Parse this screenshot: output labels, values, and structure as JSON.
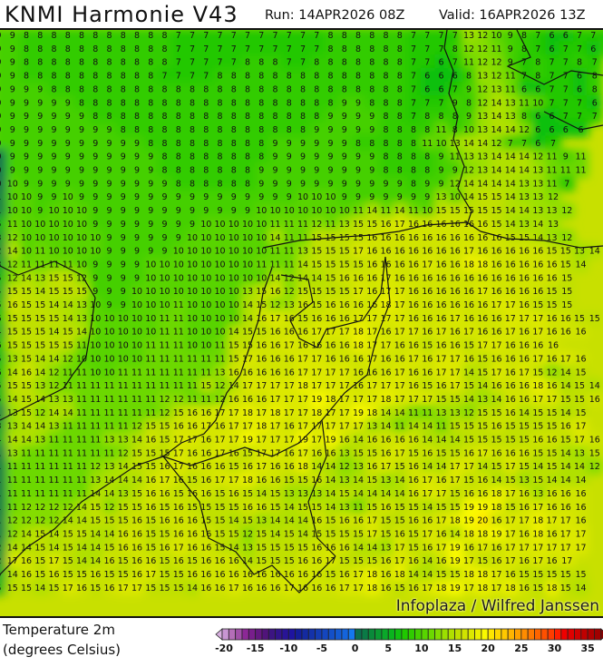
{
  "header": {
    "title": "KNMI Harmonie V43",
    "run": "Run: 14APR2026 08Z",
    "valid": "Valid: 16APR2026 13Z"
  },
  "map": {
    "variable": "Temperature 2m",
    "units": "(degrees Celsius)",
    "watermark": "Infoplaza / Wilfred Janssen",
    "grid_rows": [
      "9 9 8 8 8 8 8 8 8 8 8 8 8 7 7 7 7 7 7 7 7 7 7 7 8 8 8 8 8 8 7 7 7 7 13 12 10 9 8 7 6 6 7 7 7",
      "9 9 8 8 8 8 8 8 8 8 8 8 8 7 7 7 7 7 7 7 7 7 7 7 8 8 8 8 8 8 7 7 7 8 12 12 11 9 8 7 6 7 7 6 8",
      "9 9 8 8 8 8 8 8 8 8 8 8 8 7 7 7 7 7 8 8 8 7 7 8 8 8 8 8 8 8 7 7 6 7 11 12 12 9 7 8 7 7 8 7",
      "9 9 8 8 8 8 8 8 8 8 8 8 7 7 7 7 8 8 8 8 8 8 8 8 8 8 8 8 8 8 7 6 6 6 8 13 12 11 7 8 7 7 6 8",
      "9 9 9 9 8 8 8 8 8 8 8 8 8 8 8 8 8 8 8 8 8 8 8 8 8 8 8 8 8 8 7 6 6 7 9 12 13 11 6 6 7 7 6 8",
      "9 9 9 9 9 9 8 8 8 8 8 8 8 8 8 8 8 8 8 8 8 8 8 8 8 9 9 8 8 8 7 7 7 9 8 12 14 13 11 10 7 7 7 6",
      "9 9 9 9 9 9 9 8 8 8 8 8 8 8 8 8 8 8 8 8 8 8 8 8 9 9 9 9 8 8 7 8 8 8 9 13 14 13 8 6 6 7 7 7",
      "9 9 9 9 9 9 9 9 9 8 8 8 8 8 8 8 8 8 8 8 8 8 8 9 9 9 9 9 8 8 8 8 11 8 10 13 14 14 12 6 6 6 6",
      "9 9 9 9 9 9 9 9 9 9 9 8 8 8 8 8 8 8 8 8 9 9 9 9 9 9 8 8 8 8 8 11 10 13 14 14 12 7 7 6 7",
      "0 9 9 9 9 9 9 9 9 9 9 9 8 8 8 8 8 8 8 8 9 9 9 9 9 9 9 9 8 8 8 8 9 11 13 13 14 14 14 12 11 9 11",
      "0 9 9 9 9 9 9 9 9 9 9 9 8 8 8 8 8 8 8 9 9 9 9 9 9 9 9 9 8 8 8 8 9 9 12 13 14 14 14 13 11 11 11",
      "0 10 9 9 9 9 9 9 9 9 9 9 9 8 8 8 8 8 8 9 9 9 9 9 9 9 9 9 9 9 8 9 9 12 14 14 14 14 13 13 11 7",
      "1 10 10 9 9 10 9 9 9 9 9 9 9 9 9 9 9 9 9 9 9 9 10 10 10 9 9 9 9 9 9 9 13 10 14 15 15 14 13 13 12",
      "1 10 10 9 10 10 10 9 9 9 9 9 9 9 9 9 9 9 9 10 10 10 10 10 10 10 11 14 11 14 11 10 15 15 15 15 15 14 14 13 13 12",
      "5 11 10 10 10 10 10 9 9 9 9 9 9 9 9 10 10 10 10 10 11 11 11 12 11 13 15 15 16 17 16 16 16 16 16 16 15 14 13 14 13",
      "3 12 10 10 10 10 10 10 9 9 9 9 9 9 10 10 10 10 10 10 14 11 11 15 15 15 15 16 16 16 16 16 16 16 16 16 16 15 15 14 13 12",
      "2 14 10 11 10 10 10 10 9 9 9 9 9 10 10 10 10 10 10 10 11 11 13 15 15 15 17 16 16 16 16 16 16 16 17 16 16 16 16 16 15 15 13 14",
      "3 12 11 11 11 11 10 9 9 9 9 10 10 10 10 10 10 10 10 11 11 11 14 15 15 15 15 16 16 16 16 17 16 16 18 18 16 16 16 16 16 15 14",
      "5 12 14 13 15 15 12 9 9 9 9 10 10 10 10 10 10 10 10 10 14 12 14 14 15 16 16 16 17 16 16 16 16 16 16 16 16 16 16 16 16 15",
      "4 15 15 14 15 15 15 9 9 9 10 10 10 10 10 10 10 10 13 15 16 12 15 15 15 15 17 16 17 17 16 16 16 16 16 17 16 16 16 16 15 15",
      "5 16 15 15 14 14 13 10 9 9 10 10 10 11 10 10 10 10 14 15 12 13 16 15 16 16 16 16 18 17 16 16 16 16 16 16 17 17 16 15 15 15",
      "6 15 15 15 15 14 13 10 10 10 10 10 11 11 10 10 10 10 14 16 17 16 15 16 16 16 17 17 17 17 16 16 16 17 16 16 16 17 17 17 16 16 15 15",
      "4 15 15 15 14 15 14 10 10 10 10 10 11 11 10 10 10 14 15 15 16 16 16 17 17 17 18 17 16 17 17 16 17 16 17 16 16 17 16 17 16 16 16",
      "6 15 15 15 15 15 11 10 10 10 10 11 11 11 10 10 11 15 15 16 16 17 16 16 16 16 18 17 17 16 16 15 16 16 15 17 17 16 16 16 16",
      "5 13 15 14 14 12 10 10 10 10 10 11 11 11 11 11 11 15 17 16 16 16 17 17 16 16 16 17 16 16 17 16 17 17 16 15 16 16 16 17 16 17 16",
      "6 14 16 14 12 11 11 10 10 11 11 11 11 11 11 11 13 16 16 16 16 16 17 17 17 17 16 16 16 17 16 16 17 17 14 15 17 16 17 15 12 14 15",
      "5 15 15 13 12 11 11 11 11 11 11 11 11 11 11 15 12 14 17 17 17 17 18 17 17 17 16 17 17 17 16 15 16 17 15 14 16 16 16 18 16 14 15 14",
      "5 14 15 14 13 13 11 11 11 11 11 11 12 12 11 11 12 16 16 16 17 17 17 19 18 17 17 17 18 17 17 17 15 15 14 13 14 16 16 17 17 15 15 16",
      "1 13 15 12 14 14 11 11 11 11 11 11 12 15 16 16 17 17 18 17 18 17 17 18 17 17 19 18 14 14 11 11 13 13 12 15 15 16 14 15 15 14 15",
      "3 13 14 14 13 11 11 11 11 11 12 15 15 16 16 17 16 17 17 18 17 16 17 17 17 17 17 13 14 11 14 14 11 15 15 15 16 15 15 15 15 16 17",
      "4 14 14 13 11 11 11 11 13 13 14 16 15 17 17 16 17 17 19 17 17 17 19 17 19 16 14 16 16 16 16 14 14 14 15 15 15 15 15 16 16 15 17 16",
      "1 13 11 11 11 11 11 11 11 12 15 15 15 17 16 16 17 16 15 17 17 16 17 16 16 13 15 15 16 17 15 16 15 15 16 17 16 16 16 15 15 14 13 15",
      "1 11 11 11 11 11 11 12 13 14 15 15 16 17 16 16 16 15 16 17 16 16 18 14 14 12 13 16 17 15 16 14 14 17 17 14 15 17 15 14 15 14 14 12",
      "1 11 11 11 11 11 11 13 14 14 14 16 17 16 15 16 17 17 18 16 16 15 15 16 14 13 14 15 13 14 16 17 16 17 15 16 14 15 13 15 14 14 14",
      "1 11 11 11 11 11 11 14 14 13 15 16 16 15 16 16 15 16 15 14 15 13 13 13 14 15 14 14 14 14 16 17 17 15 16 16 18 17 16 13 16 16 16",
      "1 11 12 12 12 12 14 15 12 15 15 16 15 16 15 15 15 15 16 16 15 14 15 15 14 13 11 15 16 15 15 14 15 15 19 19 18 15 16 17 16 16 16",
      "1 12 12 12 12 14 14 15 15 15 16 15 16 16 16 15 15 14 15 13 14 14 14 16 15 16 16 17 15 15 16 16 17 18 19 20 16 17 17 18 17 17 16",
      "1 12 14 15 14 15 15 14 14 16 16 15 15 16 16 16 15 15 12 15 14 15 14 15 15 15 15 17 15 16 15 17 16 14 18 18 19 17 16 18 16 17 17",
      "2 14 14 15 14 15 14 14 15 16 16 15 16 17 16 16 15 14 13 15 15 15 15 16 16 16 14 14 13 17 15 16 17 19 16 17 16 17 17 17 17 17 17",
      "2 17 16 15 17 15 14 14 16 15 16 16 15 16 15 16 16 16 14 15 15 15 16 16 17 15 15 15 16 17 16 14 16 19 17 15 16 17 16 17 16 17",
      "4 14 16 15 16 15 15 16 15 15 16 17 15 15 16 16 16 16 16 16 16 16 16 16 15 16 17 18 16 18 14 14 15 15 18 18 17 16 15 15 15 15 15",
      "5 15 15 14 15 17 16 15 16 17 17 15 15 15 14 16 16 17 16 16 16 17 16 16 16 17 17 18 16 15 16 17 18 19 17 18 17 18 16 15 18 15 14"
    ]
  },
  "colorbar": {
    "min": -20,
    "max": 36,
    "tick_labels": [
      "-20",
      "-15",
      "-10",
      "-5",
      "0",
      "5",
      "10",
      "15",
      "20",
      "25",
      "30",
      "35"
    ],
    "colors": {
      "-20": "#c896d2",
      "-19": "#b46eb8",
      "-18": "#a050a8",
      "-17": "#8c2896",
      "-16": "#781e8c",
      "-15": "#641882",
      "-14": "#50147a",
      "-13": "#3c1482",
      "-12": "#32148c",
      "-11": "#281496",
      "-10": "#1e14a0",
      "-9": "#141e9a",
      "-8": "#142aa0",
      "-7": "#1432aa",
      "-6": "#143cb4",
      "-5": "#1446be",
      "-4": "#1450c8",
      "-3": "#145ad2",
      "-2": "#1464dc",
      "-1": "#1478f0",
      "0": "#0a6e50",
      "1": "#0a7a46",
      "2": "#0a8a3a",
      "3": "#0a9a32",
      "4": "#0aa82a",
      "5": "#0ab41e",
      "6": "#10c010",
      "7": "#20c800",
      "8": "#30cc00",
      "9": "#44d000",
      "10": "#58d400",
      "11": "#6cd800",
      "12": "#84dc00",
      "13": "#9ce000",
      "14": "#b0e000",
      "15": "#c0e000",
      "16": "#d0e400",
      "17": "#dce800",
      "18": "#ecf000",
      "19": "#fafa00",
      "20": "#ffe600",
      "21": "#ffd800",
      "22": "#ffc800",
      "23": "#ffb400",
      "24": "#ffa000",
      "25": "#ff8c00",
      "26": "#ff7800",
      "27": "#ff6400",
      "28": "#ff5000",
      "29": "#ff3c00",
      "30": "#ff1e00",
      "31": "#f00000",
      "32": "#e00000",
      "33": "#d00000",
      "34": "#c00000",
      "35": "#b00000",
      "36": "#a00000"
    },
    "under_color": "#d8b0e0",
    "over_color": "#8c0000"
  }
}
